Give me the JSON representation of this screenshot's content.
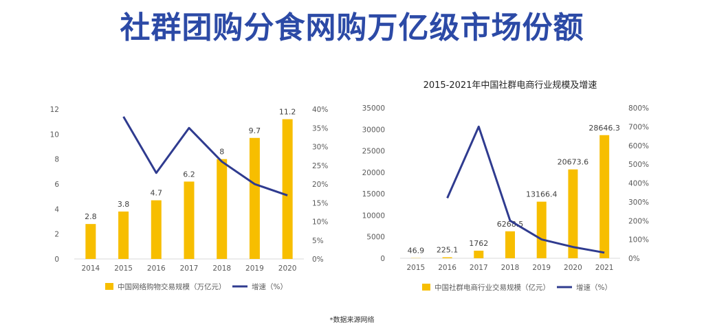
{
  "page_title": "社群团购分食网购万亿级市场份额",
  "footnote": "*数据来源网络",
  "colors": {
    "bar": "#f7be00",
    "line": "#2f3b8f",
    "title": "#2c4aa6",
    "text": "#595959",
    "grid": "#d9d9d9"
  },
  "chart_data": [
    {
      "type": "bar",
      "title": "",
      "categories": [
        "2014",
        "2015",
        "2016",
        "2017",
        "2018",
        "2019",
        "2020"
      ],
      "series": [
        {
          "name": "中国网络购物交易规模（万亿元）",
          "type": "bar",
          "axis": "left",
          "values": [
            2.8,
            3.8,
            4.7,
            6.2,
            8,
            9.7,
            11.2
          ],
          "labels": [
            "2.8",
            "3.8",
            "4.7",
            "6.2",
            "8",
            "9.7",
            "11.2"
          ]
        },
        {
          "name": "增速（%）",
          "type": "line",
          "axis": "right",
          "values": [
            null,
            0.38,
            0.23,
            0.35,
            0.26,
            0.2,
            0.17
          ]
        }
      ],
      "ylim": [
        0,
        12
      ],
      "yticks": [
        "0",
        "2",
        "4",
        "6",
        "8",
        "10",
        "12"
      ],
      "y2lim": [
        0,
        0.4
      ],
      "y2ticks": [
        "0%",
        "5%",
        "10%",
        "15%",
        "20%",
        "25%",
        "30%",
        "35%",
        "40%"
      ],
      "grid": false,
      "legend": "bottom"
    },
    {
      "type": "bar",
      "title": "2015-2021年中国社群电商行业规模及增速",
      "categories": [
        "2015",
        "2016",
        "2017",
        "2018",
        "2019",
        "2020",
        "2021"
      ],
      "series": [
        {
          "name": "中国社群电商行业交易规模（亿元）",
          "type": "bar",
          "axis": "left",
          "values": [
            46.9,
            225.1,
            1762,
            6268.5,
            13166.4,
            20673.6,
            28646.3
          ],
          "labels": [
            "46.9",
            "225.1",
            "1762",
            "6268.5",
            "13166.4",
            "20673.6",
            "28646.3"
          ]
        },
        {
          "name": "增速（%）",
          "type": "line",
          "axis": "right",
          "values": [
            null,
            3.2,
            7.0,
            2.0,
            1.0,
            0.6,
            0.3
          ]
        }
      ],
      "ylim": [
        0,
        35000
      ],
      "yticks": [
        "0",
        "5000",
        "10000",
        "15000",
        "20000",
        "25000",
        "30000",
        "35000"
      ],
      "y2lim": [
        0,
        8
      ],
      "y2ticks": [
        "0%",
        "100%",
        "200%",
        "300%",
        "400%",
        "500%",
        "600%",
        "700%",
        "800%"
      ],
      "grid": false,
      "legend": "bottom"
    }
  ]
}
